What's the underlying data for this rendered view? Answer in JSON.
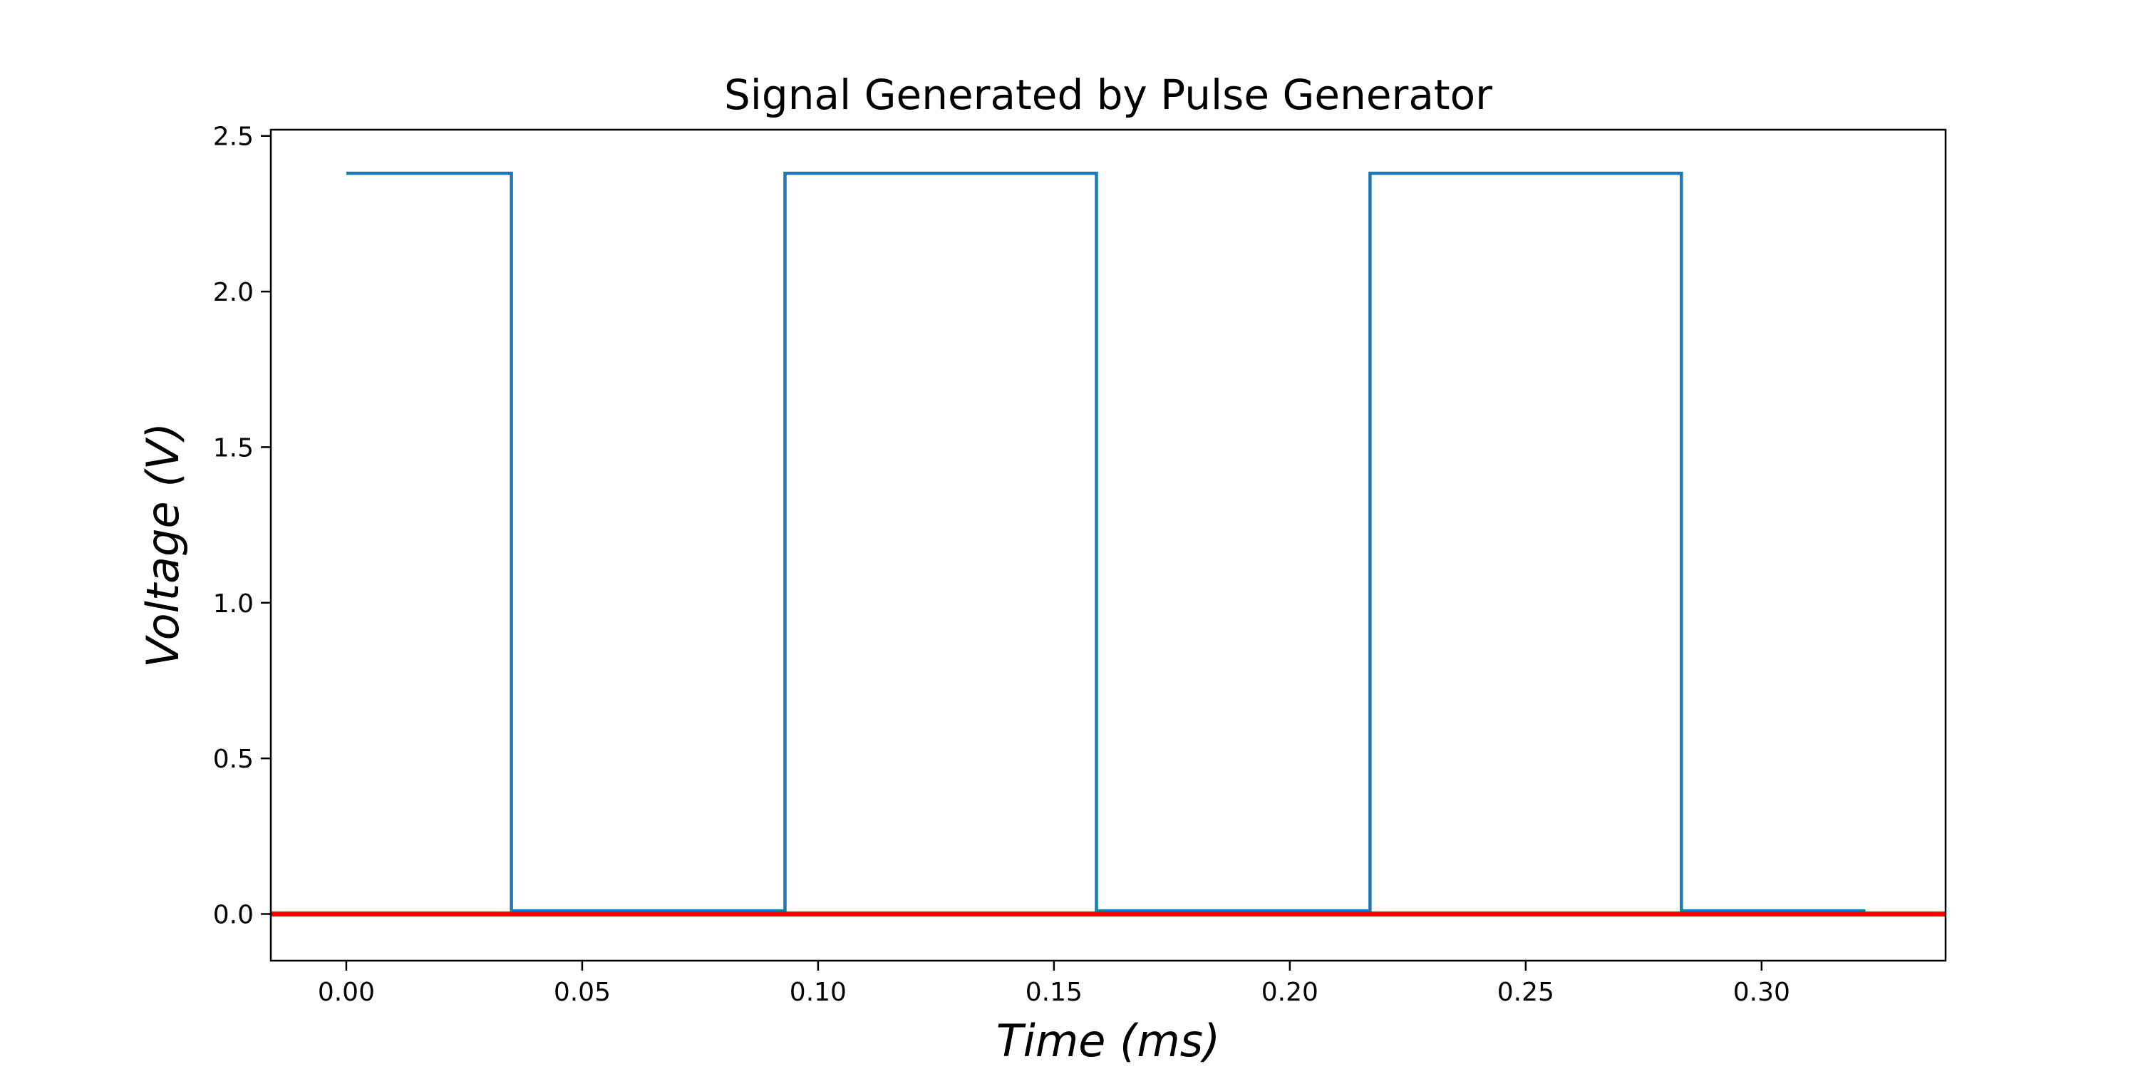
{
  "chart_data": {
    "type": "line",
    "title": "Signal Generated by Pulse Generator",
    "xlabel": "Time (ms)",
    "ylabel": "Voltage (V)",
    "xlim": [
      -0.016,
      0.339
    ],
    "ylim": [
      -0.15,
      2.52
    ],
    "xticks": [
      0.0,
      0.05,
      0.1,
      0.15,
      0.2,
      0.25,
      0.3
    ],
    "xtick_labels": [
      "0.00",
      "0.05",
      "0.10",
      "0.15",
      "0.20",
      "0.25",
      "0.30"
    ],
    "yticks": [
      0.0,
      0.5,
      1.0,
      1.5,
      2.0,
      2.5
    ],
    "ytick_labels": [
      "0.0",
      "0.5",
      "1.0",
      "1.5",
      "2.0",
      "2.5"
    ],
    "grid": false,
    "series": [
      {
        "color": "#1f77b4",
        "x": [
          0.0,
          0.035,
          0.035,
          0.093,
          0.093,
          0.159,
          0.159,
          0.217,
          0.217,
          0.283,
          0.283,
          0.322
        ],
        "y": [
          2.38,
          2.38,
          0.01,
          0.01,
          2.38,
          2.38,
          0.01,
          0.01,
          2.38,
          2.38,
          0.01,
          0.01
        ]
      }
    ],
    "reference_line": {
      "y": 0.0,
      "color": "#ff0000"
    }
  }
}
